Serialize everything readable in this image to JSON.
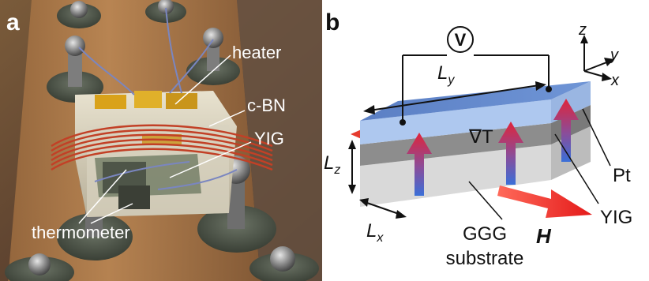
{
  "figure": {
    "panel_a": {
      "letter": "a",
      "labels": {
        "heater": "heater",
        "cbn": "c-BN",
        "yig": "YIG",
        "thermometer": "thermometer"
      }
    },
    "panel_b": {
      "letter": "b",
      "voltmeter": "V",
      "axes": {
        "z": "z",
        "y": "y",
        "x": "x"
      },
      "dims": {
        "ly_main": "L",
        "ly_sub": "y",
        "lz_main": "L",
        "lz_sub": "z",
        "lx_main": "L",
        "lx_sub": "x"
      },
      "grad": "∇T",
      "labels": {
        "pt": "Pt",
        "yig": "YIG",
        "ggg": "GGG",
        "substrate": "substrate",
        "h": "H"
      }
    }
  }
}
